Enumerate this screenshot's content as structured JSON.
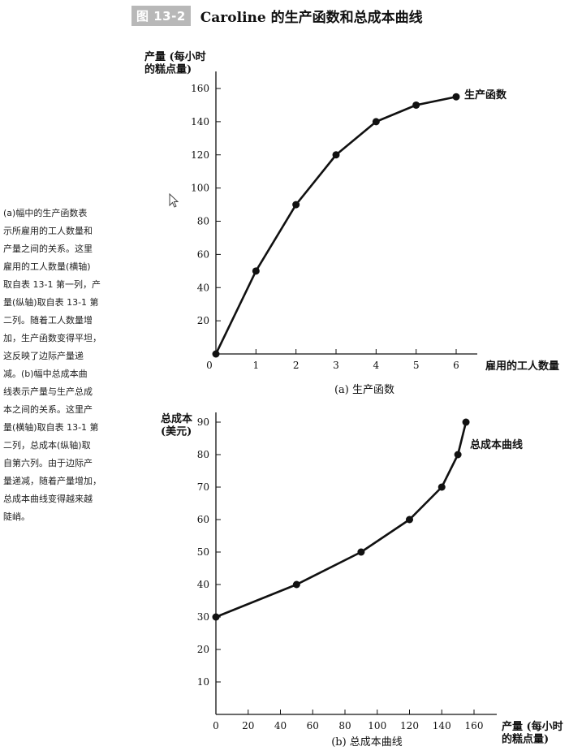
{
  "figure": {
    "tag": "图 13-2",
    "title": "Caroline 的生产函数和总成本曲线"
  },
  "caption": "(a)幅中的生产函数表\n示所雇用的工人数量和\n产量之间的关系。这里\n雇用的工人数量(横轴)\n取自表 13-1 第一列，产\n量(纵轴)取自表 13-1 第\n二列。随着工人数量增\n加，生产函数变得平坦，\n这反映了边际产量递\n减。(b)幅中总成本曲\n线表示产量与生产总成\n本之间的关系。这里产\n量(横轴)取自表 13-1 第\n二列，总成本(纵轴)取\n自第六列。由于边际产\n量递减，随着产量增加，\n总成本曲线变得越来越\n陡峭。",
  "chart_data": [
    {
      "type": "line",
      "panel_label": "(a) 生产函数",
      "ylabel": "产量 (每小时\n的糕点量)",
      "xlabel": "雇用的工人数量",
      "series_label": "生产函数",
      "x": [
        0,
        1,
        2,
        3,
        4,
        5,
        6
      ],
      "y": [
        0,
        50,
        90,
        120,
        140,
        150,
        155
      ],
      "xticks": [
        0,
        1,
        2,
        3,
        4,
        5,
        6
      ],
      "yticks": [
        20,
        40,
        60,
        80,
        100,
        120,
        140,
        160
      ],
      "xlim": [
        0,
        6
      ],
      "ylim": [
        0,
        160
      ],
      "grid": false
    },
    {
      "type": "line",
      "panel_label": "(b) 总成本曲线",
      "ylabel": "总成本\n(美元)",
      "xlabel": "产量 (每小时\n的糕点量)",
      "series_label": "总成本曲线",
      "x": [
        0,
        50,
        90,
        120,
        140,
        150,
        155
      ],
      "y": [
        30,
        40,
        50,
        60,
        70,
        80,
        90
      ],
      "xticks": [
        0,
        20,
        40,
        60,
        80,
        100,
        120,
        140,
        160
      ],
      "yticks": [
        10,
        20,
        30,
        40,
        50,
        60,
        70,
        80,
        90
      ],
      "xlim": [
        0,
        160
      ],
      "ylim": [
        0,
        90
      ],
      "grid": false
    }
  ]
}
